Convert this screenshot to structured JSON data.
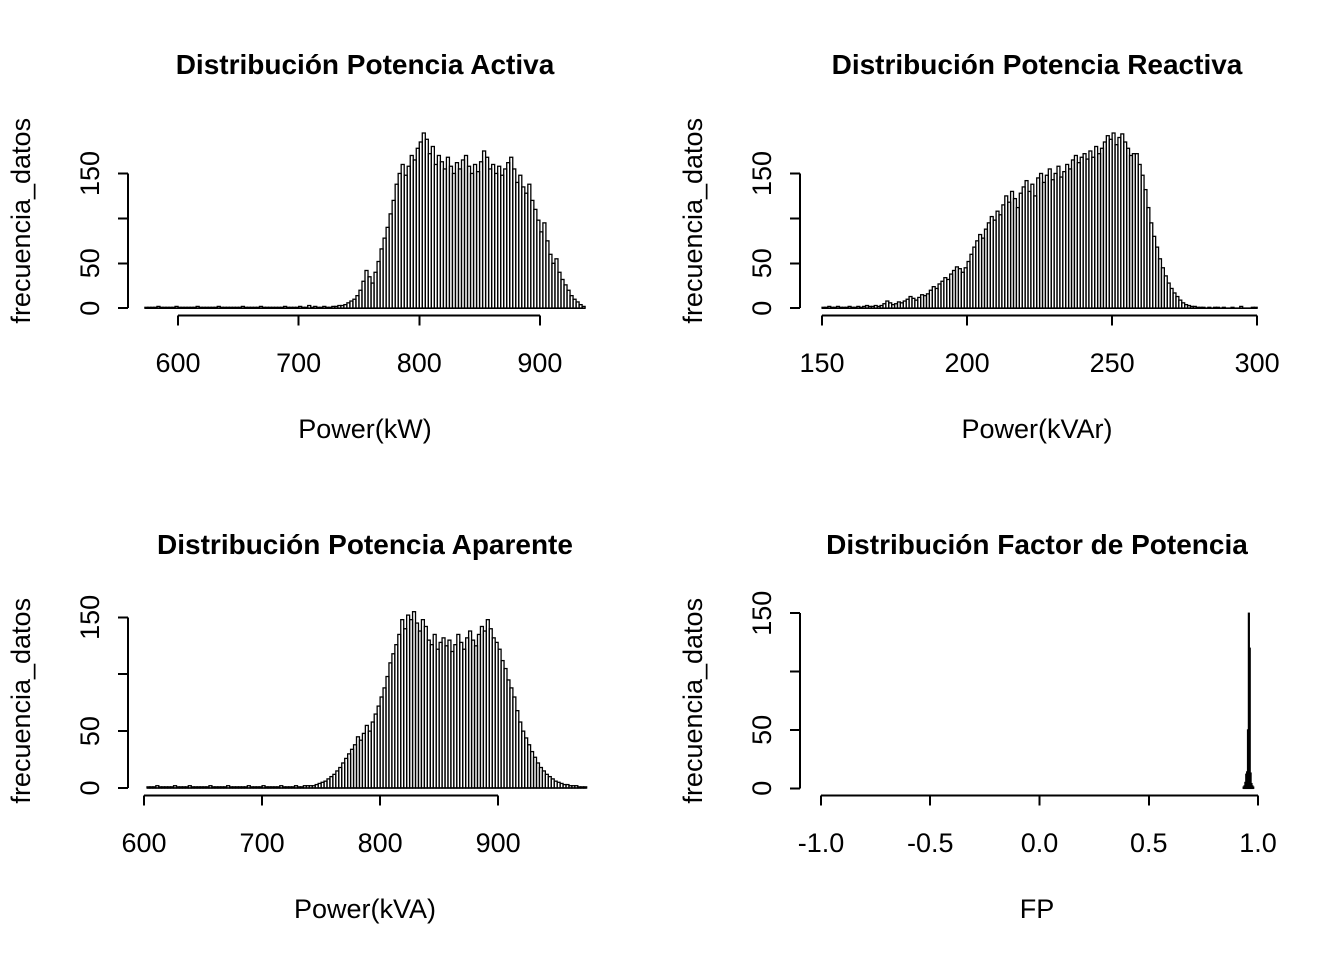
{
  "page": {
    "background": "#ffffff",
    "ink": "#000000"
  },
  "chart_data": [
    {
      "type": "histogram",
      "title": "Distribución Potencia Activa",
      "xlabel": "Power(kW)",
      "ylabel": "frecuencia_datos",
      "xlim": [
        558.5,
        951.5
      ],
      "ylim": [
        -8.1,
        202.8
      ],
      "xticks": [
        600,
        700,
        800,
        900
      ],
      "xtick_labels": [
        "600",
        "700",
        "800",
        "900"
      ],
      "yticks": [
        0,
        50,
        100,
        150
      ],
      "ytick_labels": [
        "0",
        "50",
        "",
        "150"
      ],
      "legend": "none",
      "grid": false,
      "bar_color": "#000000",
      "bar_fill": "none",
      "bins": {
        "start": 572.5,
        "width": 2.5,
        "counts": [
          1,
          1,
          1,
          1,
          2,
          1,
          1,
          1,
          1,
          1,
          2,
          1,
          1,
          1,
          1,
          1,
          1,
          2,
          1,
          1,
          1,
          1,
          1,
          1,
          2,
          1,
          1,
          1,
          1,
          1,
          1,
          1,
          2,
          1,
          1,
          1,
          1,
          1,
          2,
          1,
          1,
          1,
          1,
          1,
          1,
          1,
          2,
          1,
          1,
          1,
          1,
          2,
          1,
          1,
          3,
          1,
          2,
          1,
          1,
          2,
          1,
          1,
          2,
          2,
          3,
          3,
          4,
          6,
          8,
          10,
          14,
          20,
          30,
          42,
          35,
          28,
          40,
          52,
          66,
          78,
          90,
          105,
          120,
          138,
          150,
          160,
          148,
          158,
          170,
          165,
          178,
          185,
          195,
          188,
          172,
          180,
          160,
          170,
          163,
          155,
          168,
          158,
          150,
          162,
          155,
          165,
          170,
          158,
          150,
          160,
          152,
          163,
          175,
          168,
          155,
          160,
          150,
          158,
          148,
          155,
          162,
          168,
          155,
          140,
          148,
          135,
          128,
          138,
          120,
          110,
          98,
          85,
          95,
          75,
          60,
          50,
          55,
          40,
          32,
          26,
          20,
          14,
          10,
          7,
          4,
          2
        ]
      }
    },
    {
      "type": "histogram",
      "title": "Distribución Potencia Reactiva",
      "xlabel": "Power(kVAr)",
      "ylabel": "frecuencia_datos",
      "xlim": [
        142.4,
        305.8
      ],
      "ylim": [
        -8.1,
        202.8
      ],
      "xticks": [
        150,
        200,
        250,
        300
      ],
      "xtick_labels": [
        "150",
        "200",
        "250",
        "300"
      ],
      "yticks": [
        0,
        50,
        100,
        150
      ],
      "ytick_labels": [
        "0",
        "50",
        "",
        "150"
      ],
      "legend": "none",
      "grid": false,
      "bar_color": "#000000",
      "bar_fill": "none",
      "bins": {
        "start": 150,
        "width": 1,
        "counts": [
          1,
          1,
          2,
          1,
          1,
          2,
          1,
          1,
          1,
          2,
          1,
          1,
          2,
          1,
          2,
          3,
          2,
          2,
          3,
          2,
          3,
          5,
          8,
          6,
          4,
          5,
          7,
          6,
          8,
          10,
          13,
          11,
          9,
          12,
          15,
          14,
          16,
          20,
          24,
          22,
          27,
          30,
          34,
          32,
          38,
          42,
          46,
          44,
          40,
          45,
          52,
          60,
          68,
          75,
          82,
          78,
          88,
          95,
          102,
          98,
          108,
          104,
          115,
          125,
          118,
          130,
          122,
          112,
          128,
          135,
          142,
          130,
          138,
          125,
          145,
          150,
          140,
          148,
          155,
          143,
          150,
          158,
          146,
          152,
          160,
          155,
          165,
          170,
          162,
          168,
          172,
          166,
          175,
          168,
          180,
          172,
          178,
          185,
          192,
          188,
          195,
          182,
          190,
          194,
          185,
          178,
          170,
          172,
          172,
          160,
          148,
          132,
          112,
          95,
          80,
          68,
          55,
          45,
          36,
          28,
          22,
          17,
          13,
          9,
          6,
          4,
          3,
          2,
          2,
          1,
          1,
          1,
          0,
          1,
          0,
          1,
          1,
          0,
          1,
          0,
          0,
          1,
          0,
          0,
          2,
          0,
          0,
          0,
          1,
          1
        ]
      }
    },
    {
      "type": "histogram",
      "title": "Distribución Potencia Aparente",
      "xlabel": "Power(kVA)",
      "ylabel": "frecuencia_datos",
      "xlim": [
        586.4,
        988
      ],
      "ylim": [
        -6.6,
        160
      ],
      "xticks": [
        600,
        700,
        800,
        900
      ],
      "xtick_labels": [
        "600",
        "700",
        "800",
        "900"
      ],
      "yticks": [
        0,
        50,
        100,
        150
      ],
      "ytick_labels": [
        "0",
        "50",
        "",
        "150"
      ],
      "legend": "none",
      "grid": false,
      "bar_color": "#000000",
      "bar_fill": "none",
      "bins": {
        "start": 602.5,
        "width": 2.5,
        "counts": [
          1,
          1,
          1,
          2,
          1,
          1,
          1,
          1,
          1,
          2,
          1,
          1,
          1,
          1,
          2,
          1,
          1,
          1,
          1,
          1,
          1,
          2,
          1,
          1,
          1,
          1,
          1,
          2,
          1,
          1,
          1,
          1,
          1,
          1,
          2,
          1,
          1,
          1,
          1,
          2,
          1,
          1,
          1,
          1,
          1,
          2,
          1,
          1,
          1,
          1,
          2,
          1,
          1,
          2,
          2,
          2,
          2,
          3,
          4,
          5,
          6,
          8,
          10,
          12,
          15,
          18,
          22,
          26,
          30,
          34,
          38,
          45,
          42,
          48,
          55,
          50,
          58,
          65,
          72,
          80,
          88,
          98,
          110,
          118,
          126,
          135,
          148,
          140,
          152,
          148,
          155,
          145,
          138,
          148,
          142,
          130,
          126,
          135,
          122,
          128,
          132,
          125,
          130,
          120,
          126,
          135,
          128,
          122,
          132,
          138,
          130,
          125,
          135,
          142,
          138,
          148,
          140,
          132,
          128,
          122,
          112,
          105,
          95,
          88,
          80,
          68,
          58,
          50,
          44,
          38,
          32,
          27,
          22,
          18,
          15,
          12,
          10,
          8,
          6,
          5,
          4,
          3,
          3,
          2,
          2,
          2,
          1,
          1,
          1
        ]
      }
    },
    {
      "type": "histogram",
      "title": "Distribución Factor de Potencia",
      "xlabel": "FP",
      "ylabel": "frecuencia_datos",
      "xlim": [
        -1.096,
        1.073
      ],
      "ylim": [
        -6.2,
        156.2
      ],
      "xticks": [
        -1.0,
        -0.5,
        0.0,
        0.5,
        1.0
      ],
      "xtick_labels": [
        "-1.0",
        "-0.5",
        "0.0",
        "0.5",
        "1.0"
      ],
      "yticks": [
        0,
        50,
        100,
        150
      ],
      "ytick_labels": [
        "0",
        "50",
        "",
        "150"
      ],
      "legend": "none",
      "grid": false,
      "bar_color": "#000000",
      "bar_fill": "none",
      "bins": {
        "start": 0.932,
        "width": 0.004,
        "counts": [
          1,
          2,
          5,
          12,
          14,
          50,
          150,
          120,
          13,
          4,
          2,
          1
        ]
      }
    }
  ]
}
